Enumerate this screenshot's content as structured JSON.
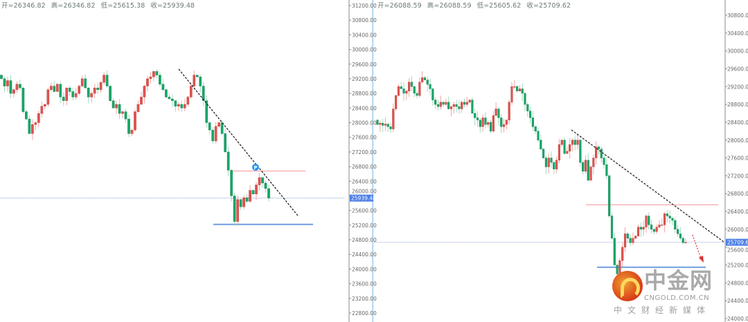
{
  "colors": {
    "up": "#e0534f",
    "down": "#17a768",
    "up_wick": "#f4a4a4",
    "down_wick": "#9fdcbc",
    "axis_label_bg": "#4d7fe6",
    "trend": "#222222",
    "resistance": "#f7b3b3",
    "support": "#6f9be0",
    "arrow": "#d93030",
    "separator": "#8ec3ea"
  },
  "chart_data": [
    {
      "type": "candlestick",
      "ohlc": {
        "open": "开=26346.82",
        "high": "高=26346.82",
        "low": "低=25615.38",
        "close": "收=25939.48"
      },
      "ylim": [
        22600,
        31300
      ],
      "y_ticks": [
        "31200.00",
        "30800.00",
        "30400.00",
        "30000.00",
        "29600.00",
        "29200.00",
        "28800.00",
        "28400.00",
        "28000.00",
        "27600.00",
        "27200.00",
        "26800.00",
        "26400.00",
        "26000.00",
        "25600.00",
        "25200.00",
        "24800.00",
        "24400.00",
        "24000.00",
        "23600.00",
        "23200.00",
        "22800.00"
      ],
      "current_price": "25939.48",
      "marker": "P",
      "closes": [
        29200,
        29000,
        29150,
        28800,
        28900,
        29050,
        28950,
        28300,
        28100,
        27700,
        27950,
        28000,
        28250,
        28450,
        28500,
        28900,
        29000,
        28850,
        29050,
        28700,
        28600,
        28950,
        28850,
        28700,
        28800,
        29000,
        29200,
        28950,
        28700,
        28800,
        28950,
        28900,
        29100,
        29300,
        29000,
        28600,
        28400,
        28500,
        28250,
        28300,
        28100,
        27700,
        27800,
        28300,
        28500,
        28700,
        29000,
        29200,
        29250,
        29400,
        29300,
        29050,
        28900,
        28700,
        28650,
        28600,
        28450,
        28500,
        28400,
        28500,
        28700,
        29000,
        29300,
        29250,
        29000,
        28600,
        28000,
        27800,
        27500,
        27900,
        28000,
        27700,
        27200,
        26700,
        26000,
        25300,
        25900,
        25700,
        25950,
        25850,
        26150,
        26050,
        26300,
        26500,
        26350,
        26200,
        25940
      ],
      "resistance": 26680,
      "support": 25220
    },
    {
      "type": "candlestick",
      "ohlc": {
        "open": "开=26088.59",
        "high": "高=26088.59",
        "low": "低=25605.62",
        "close": "收=25709.62"
      },
      "ylim": [
        23800,
        31100
      ],
      "y_ticks": [
        "30800.00",
        "30400.00",
        "30000.00",
        "29600.00",
        "29200.00",
        "28800.00",
        "28400.00",
        "28000.00",
        "27600.00",
        "27200.00",
        "26800.00",
        "26400.00",
        "26000.00",
        "25600.00",
        "25200.00",
        "24800.00",
        "24400.00",
        "24000.00"
      ],
      "current_price": "25709.62",
      "closes": [
        28350,
        28380,
        28330,
        28360,
        28300,
        28250,
        28700,
        29000,
        29200,
        29150,
        29050,
        29100,
        29300,
        29200,
        29050,
        29000,
        29300,
        29400,
        29350,
        29250,
        29150,
        28900,
        28800,
        28750,
        28850,
        28800,
        28850,
        28700,
        28750,
        28800,
        28750,
        28700,
        28850,
        28800,
        28850,
        28900,
        28600,
        28500,
        28450,
        28300,
        28500,
        28350,
        28400,
        28200,
        28550,
        28700,
        28500,
        28300,
        28350,
        28450,
        28850,
        29200,
        29200,
        29100,
        29150,
        29050,
        28800,
        28650,
        28500,
        28300,
        28200,
        28000,
        27800,
        27600,
        27400,
        27600,
        27500,
        27350,
        27550,
        27900,
        28000,
        27700,
        27750,
        27900,
        28000,
        27900,
        28000,
        27500,
        27300,
        27550,
        27100,
        27400,
        27600,
        27850,
        27800,
        27600,
        27450,
        27200,
        26300,
        25800,
        25200,
        25000,
        25300,
        25600,
        25900,
        25800,
        25700,
        25800,
        25850,
        26050,
        26000,
        26050,
        26300,
        26100,
        26000,
        25950,
        26050,
        26100,
        26100,
        26350,
        26300,
        26250,
        26200,
        26000,
        25900,
        25800,
        25700,
        25710
      ],
      "resistance": 26550,
      "support": 25150
    }
  ],
  "watermark": {
    "name": "中金网",
    "domain": "CNGOLD.COM.CN",
    "tagline": "中文财经新媒体"
  }
}
